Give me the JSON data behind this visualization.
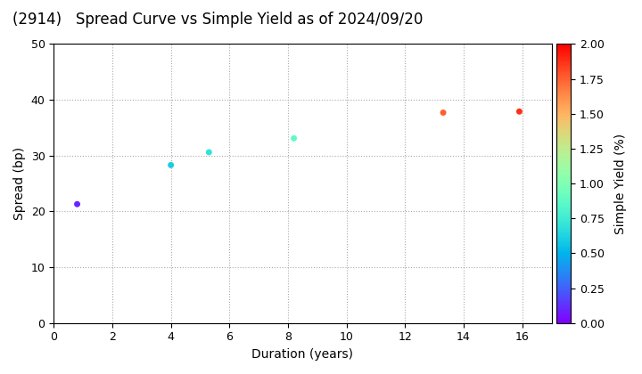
{
  "title": "(2914)   Spread Curve vs Simple Yield as of 2024/09/20",
  "xlabel": "Duration (years)",
  "ylabel": "Spread (bp)",
  "colorbar_label": "Simple Yield (%)",
  "xlim": [
    0,
    17
  ],
  "ylim": [
    0,
    50
  ],
  "xticks": [
    0,
    2,
    4,
    6,
    8,
    10,
    12,
    14,
    16
  ],
  "yticks": [
    0,
    10,
    20,
    30,
    40,
    50
  ],
  "colorbar_ticks": [
    0.0,
    0.25,
    0.5,
    0.75,
    1.0,
    1.25,
    1.5,
    1.75,
    2.0
  ],
  "cmap": "rainbow",
  "vmin": 0.0,
  "vmax": 2.0,
  "points": [
    {
      "duration": 0.8,
      "spread": 21.3,
      "simple_yield": 0.1
    },
    {
      "duration": 4.0,
      "spread": 28.3,
      "simple_yield": 0.6
    },
    {
      "duration": 5.3,
      "spread": 30.6,
      "simple_yield": 0.7
    },
    {
      "duration": 8.2,
      "spread": 33.1,
      "simple_yield": 0.88
    },
    {
      "duration": 13.3,
      "spread": 37.7,
      "simple_yield": 1.75
    },
    {
      "duration": 15.9,
      "spread": 37.9,
      "simple_yield": 1.88
    }
  ],
  "marker_size": 25,
  "background_color": "#ffffff",
  "grid_color": "#aaaaaa",
  "grid_linestyle": ":",
  "title_fontsize": 12,
  "axis_label_fontsize": 10,
  "tick_fontsize": 9,
  "colorbar_label_fontsize": 10
}
